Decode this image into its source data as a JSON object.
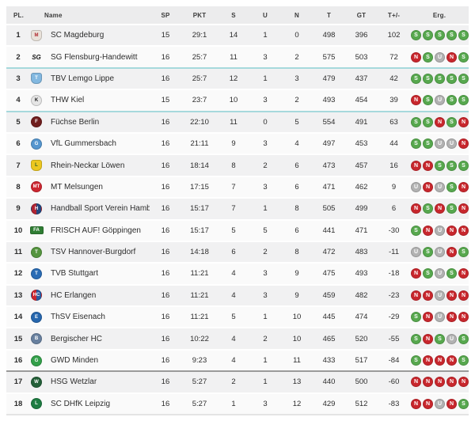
{
  "table": {
    "headers": {
      "pl": "PL.",
      "name": "Name",
      "sp": "SP",
      "pkt": "PKT",
      "s": "S",
      "u": "U",
      "n": "N",
      "t": "T",
      "gt": "GT",
      "tpm": "T+/-",
      "erg": "Erg."
    },
    "result_colors": {
      "S": "#57a84e",
      "U": "#b2b2b2",
      "N": "#c8272d"
    },
    "zone_colors": {
      "teal_divider": "#a6d9dc",
      "dark_divider": "#9a9a9a"
    },
    "rows": [
      {
        "pl": "1",
        "name": "SC Magdeburg",
        "sp": "15",
        "pkt": "29:1",
        "s": "14",
        "u": "1",
        "n": "0",
        "t": "498",
        "gt": "396",
        "tpm": "102",
        "erg": [
          "S",
          "S",
          "S",
          "S",
          "S"
        ],
        "divider": "",
        "logo": {
          "shape": "shield",
          "bg": "#e9e2da",
          "bg2": "",
          "fg": "#b02a30",
          "text": "M"
        }
      },
      {
        "pl": "2",
        "name": "SG Flensburg-Handewitt",
        "sp": "16",
        "pkt": "25:7",
        "s": "11",
        "u": "3",
        "n": "2",
        "t": "575",
        "gt": "503",
        "tpm": "72",
        "erg": [
          "N",
          "S",
          "U",
          "N",
          "S"
        ],
        "divider": "teal",
        "logo": {
          "shape": "text",
          "bg": "",
          "bg2": "",
          "fg": "#151515",
          "text": "SG"
        }
      },
      {
        "pl": "3",
        "name": "TBV Lemgo Lippe",
        "sp": "16",
        "pkt": "25:7",
        "s": "12",
        "u": "1",
        "n": "3",
        "t": "479",
        "gt": "437",
        "tpm": "42",
        "erg": [
          "S",
          "S",
          "S",
          "S",
          "S"
        ],
        "divider": "",
        "logo": {
          "shape": "shield",
          "bg": "#82b8e0",
          "bg2": "",
          "fg": "#ffffff",
          "text": "T"
        }
      },
      {
        "pl": "4",
        "name": "THW Kiel",
        "sp": "15",
        "pkt": "23:7",
        "s": "10",
        "u": "3",
        "n": "2",
        "t": "493",
        "gt": "454",
        "tpm": "39",
        "erg": [
          "N",
          "S",
          "U",
          "S",
          "S"
        ],
        "divider": "teal",
        "logo": {
          "shape": "circle",
          "bg": "#e5e5e5",
          "bg2": "",
          "fg": "#1a1a1a",
          "text": "K"
        }
      },
      {
        "pl": "5",
        "name": "Füchse Berlin",
        "sp": "16",
        "pkt": "22:10",
        "s": "11",
        "u": "0",
        "n": "5",
        "t": "554",
        "gt": "491",
        "tpm": "63",
        "erg": [
          "S",
          "S",
          "N",
          "S",
          "N"
        ],
        "divider": "",
        "logo": {
          "shape": "circle",
          "bg": "#6f1d1d",
          "bg2": "",
          "fg": "#ffffff",
          "text": "F"
        }
      },
      {
        "pl": "6",
        "name": "VfL Gummersbach",
        "sp": "16",
        "pkt": "21:11",
        "s": "9",
        "u": "3",
        "n": "4",
        "t": "497",
        "gt": "453",
        "tpm": "44",
        "erg": [
          "S",
          "S",
          "U",
          "U",
          "N"
        ],
        "divider": "",
        "logo": {
          "shape": "circle",
          "bg": "#5596cf",
          "bg2": "",
          "fg": "#ffffff",
          "text": "G"
        }
      },
      {
        "pl": "7",
        "name": "Rhein-Neckar Löwen",
        "sp": "16",
        "pkt": "18:14",
        "s": "8",
        "u": "2",
        "n": "6",
        "t": "473",
        "gt": "457",
        "tpm": "16",
        "erg": [
          "N",
          "N",
          "S",
          "S",
          "S"
        ],
        "divider": "",
        "logo": {
          "shape": "shield",
          "bg": "#ecc71f",
          "bg2": "",
          "fg": "#2c5e2e",
          "text": "L"
        }
      },
      {
        "pl": "8",
        "name": "MT Melsungen",
        "sp": "16",
        "pkt": "17:15",
        "s": "7",
        "u": "3",
        "n": "6",
        "t": "471",
        "gt": "462",
        "tpm": "9",
        "erg": [
          "U",
          "N",
          "U",
          "S",
          "N"
        ],
        "divider": "",
        "logo": {
          "shape": "circle",
          "bg": "#cd2630",
          "bg2": "",
          "fg": "#ffffff",
          "text": "MT"
        }
      },
      {
        "pl": "9",
        "name": "Handball Sport Verein Hamburg",
        "sp": "16",
        "pkt": "15:17",
        "s": "7",
        "u": "1",
        "n": "8",
        "t": "505",
        "gt": "499",
        "tpm": "6",
        "erg": [
          "N",
          "S",
          "N",
          "S",
          "N"
        ],
        "divider": "",
        "logo": {
          "shape": "circle",
          "bg": "#b02433",
          "bg2": "#24477e",
          "fg": "#ffffff",
          "text": "H"
        }
      },
      {
        "pl": "10",
        "name": "FRISCH AUF! Göppingen",
        "sp": "16",
        "pkt": "15:17",
        "s": "5",
        "u": "5",
        "n": "6",
        "t": "441",
        "gt": "471",
        "tpm": "-30",
        "erg": [
          "S",
          "N",
          "U",
          "N",
          "N"
        ],
        "divider": "",
        "logo": {
          "shape": "wide",
          "bg": "#2f7d33",
          "bg2": "",
          "fg": "#ffffff",
          "text": "FA"
        }
      },
      {
        "pl": "11",
        "name": "TSV Hannover-Burgdorf",
        "sp": "16",
        "pkt": "14:18",
        "s": "6",
        "u": "2",
        "n": "8",
        "t": "472",
        "gt": "483",
        "tpm": "-11",
        "erg": [
          "U",
          "S",
          "U",
          "N",
          "S"
        ],
        "divider": "",
        "logo": {
          "shape": "circle",
          "bg": "#55953f",
          "bg2": "",
          "fg": "#ffffff",
          "text": "T"
        }
      },
      {
        "pl": "12",
        "name": "TVB Stuttgart",
        "sp": "16",
        "pkt": "11:21",
        "s": "4",
        "u": "3",
        "n": "9",
        "t": "475",
        "gt": "493",
        "tpm": "-18",
        "erg": [
          "N",
          "S",
          "U",
          "S",
          "N"
        ],
        "divider": "",
        "logo": {
          "shape": "circle",
          "bg": "#2a6cb5",
          "bg2": "",
          "fg": "#ffffff",
          "text": "T"
        }
      },
      {
        "pl": "13",
        "name": "HC Erlangen",
        "sp": "16",
        "pkt": "11:21",
        "s": "4",
        "u": "3",
        "n": "9",
        "t": "459",
        "gt": "482",
        "tpm": "-23",
        "erg": [
          "N",
          "N",
          "U",
          "N",
          "N"
        ],
        "divider": "",
        "logo": {
          "shape": "circle",
          "bg": "#cc2630",
          "bg2": "#2a5ba0",
          "fg": "#ffffff",
          "text": "HC"
        }
      },
      {
        "pl": "14",
        "name": "ThSV Eisenach",
        "sp": "16",
        "pkt": "11:21",
        "s": "5",
        "u": "1",
        "n": "10",
        "t": "445",
        "gt": "474",
        "tpm": "-29",
        "erg": [
          "S",
          "N",
          "U",
          "N",
          "N"
        ],
        "divider": "",
        "logo": {
          "shape": "circle",
          "bg": "#2767ae",
          "bg2": "",
          "fg": "#ffffff",
          "text": "E"
        }
      },
      {
        "pl": "15",
        "name": "Bergischer HC",
        "sp": "16",
        "pkt": "10:22",
        "s": "4",
        "u": "2",
        "n": "10",
        "t": "465",
        "gt": "520",
        "tpm": "-55",
        "erg": [
          "S",
          "N",
          "S",
          "U",
          "S"
        ],
        "divider": "",
        "logo": {
          "shape": "circle",
          "bg": "#68809f",
          "bg2": "",
          "fg": "#ffffff",
          "text": "B"
        }
      },
      {
        "pl": "16",
        "name": "GWD Minden",
        "sp": "16",
        "pkt": "9:23",
        "s": "4",
        "u": "1",
        "n": "11",
        "t": "433",
        "gt": "517",
        "tpm": "-84",
        "erg": [
          "S",
          "N",
          "N",
          "N",
          "S"
        ],
        "divider": "dark",
        "logo": {
          "shape": "circle",
          "bg": "#33a04a",
          "bg2": "",
          "fg": "#ffffff",
          "text": "G"
        }
      },
      {
        "pl": "17",
        "name": "HSG Wetzlar",
        "sp": "16",
        "pkt": "5:27",
        "s": "2",
        "u": "1",
        "n": "13",
        "t": "440",
        "gt": "500",
        "tpm": "-60",
        "erg": [
          "N",
          "N",
          "N",
          "N",
          "N"
        ],
        "divider": "",
        "logo": {
          "shape": "circle",
          "bg": "#235f38",
          "bg2": "",
          "fg": "#ffffff",
          "text": "W"
        }
      },
      {
        "pl": "18",
        "name": "SC DHfK Leipzig",
        "sp": "16",
        "pkt": "5:27",
        "s": "1",
        "u": "3",
        "n": "12",
        "t": "429",
        "gt": "512",
        "tpm": "-83",
        "erg": [
          "N",
          "N",
          "U",
          "N",
          "S"
        ],
        "divider": "",
        "logo": {
          "shape": "circle",
          "bg": "#1e7c42",
          "bg2": "",
          "fg": "#ffffff",
          "text": "L"
        }
      }
    ]
  }
}
